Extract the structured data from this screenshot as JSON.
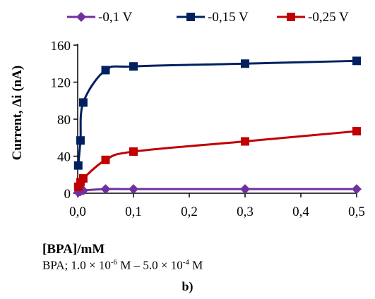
{
  "chart_data": {
    "type": "line",
    "xlabel": "[BPA]/mM",
    "ylabel": "Current, Δi  (nA)",
    "xlim": [
      0,
      0.5
    ],
    "ylim": [
      0,
      160
    ],
    "xticks": [
      "0,0",
      "0,1",
      "0,2",
      "0,3",
      "0,4",
      "0,5"
    ],
    "yticks": [
      "0",
      "40",
      "80",
      "120",
      "160"
    ],
    "grid": false,
    "legend_position": "top",
    "series": [
      {
        "name": "-0,1 V",
        "color": "#7030A0",
        "marker": "diamond",
        "points": [
          [
            0.001,
            1
          ],
          [
            0.005,
            2
          ],
          [
            0.01,
            3
          ],
          [
            0.05,
            4.5
          ],
          [
            0.1,
            4.5
          ],
          [
            0.3,
            4.5
          ],
          [
            0.5,
            4.5
          ]
        ]
      },
      {
        "name": "-0,15 V",
        "color": "#002060",
        "marker": "square",
        "points": [
          [
            0.001,
            30
          ],
          [
            0.005,
            57
          ],
          [
            0.01,
            98
          ],
          [
            0.05,
            133
          ],
          [
            0.1,
            137
          ],
          [
            0.3,
            140
          ],
          [
            0.5,
            143
          ]
        ]
      },
      {
        "name": "-0,25 V",
        "color": "#C00000",
        "marker": "square",
        "points": [
          [
            0.001,
            7
          ],
          [
            0.005,
            12
          ],
          [
            0.01,
            16
          ],
          [
            0.05,
            36
          ],
          [
            0.1,
            45
          ],
          [
            0.3,
            56
          ],
          [
            0.5,
            67
          ]
        ]
      }
    ]
  },
  "caption": {
    "prefix": "BPA; 1.0 × 10",
    "exp1": "-6",
    "middle": " M – 5.0 × 10",
    "exp2": "-4",
    "suffix": " M"
  },
  "panel_label": "b)"
}
